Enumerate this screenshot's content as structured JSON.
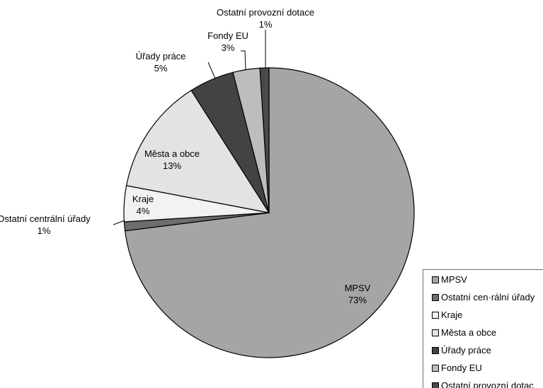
{
  "chart_data": {
    "type": "pie",
    "title": "",
    "slices": [
      {
        "label": "MPSV",
        "value": 73,
        "value_label": "73%",
        "color": "#a5a5a5"
      },
      {
        "label": "Ostatní centrální úřady",
        "value": 1,
        "value_label": "1%",
        "color": "#6d6d6d"
      },
      {
        "label": "Kraje",
        "value": 4,
        "value_label": "4%",
        "color": "#f2f2f2"
      },
      {
        "label": "Města a obce",
        "value": 13,
        "value_label": "13%",
        "color": "#e3e3e3"
      },
      {
        "label": "Úřady práce",
        "value": 5,
        "value_label": "5%",
        "color": "#434343"
      },
      {
        "label": "Fondy EU",
        "value": 3,
        "value_label": "3%",
        "color": "#bdbdbd"
      },
      {
        "label": "Ostatní provozní dotace",
        "value": 1,
        "value_label": "1%",
        "color": "#4a4a4a"
      }
    ],
    "legend": {
      "position": "bottom-right",
      "entries": [
        "MPSV",
        "Ostatní cen·rální úřady",
        "Kraje",
        "Města a obce",
        "Úřady práce",
        "Fondy EU",
        "Ostatní provozní dotac"
      ]
    }
  }
}
